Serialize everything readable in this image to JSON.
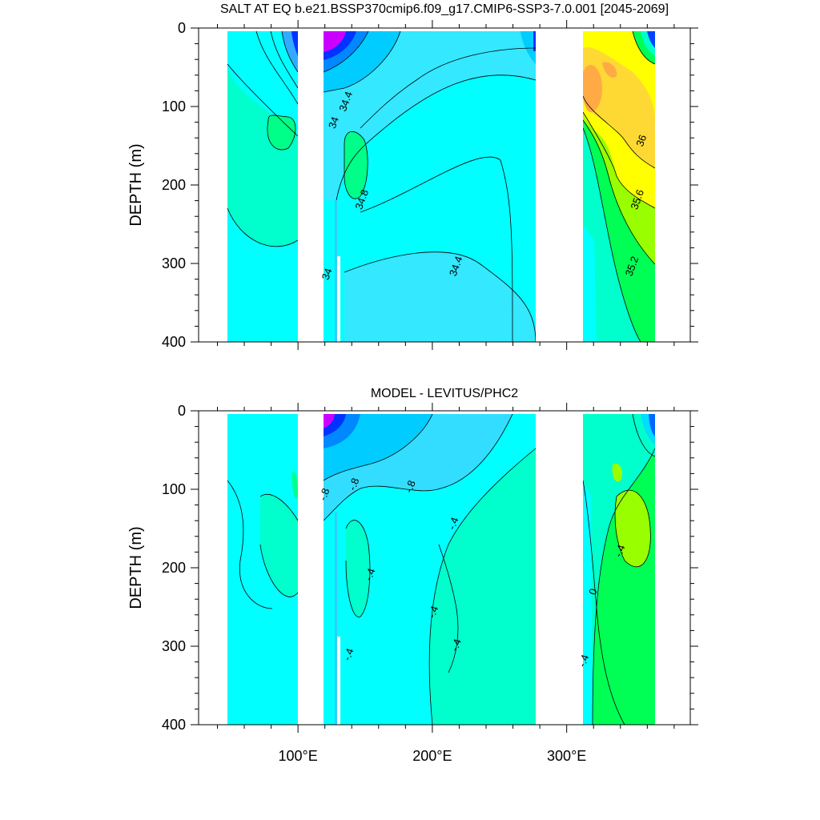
{
  "chart_data": [
    {
      "type": "heatmap",
      "title": "SALT AT EQ b.e21.BSSP370cmip6.f09_g17.CMIP6-SSP3-7.0.001 [2045-2069]",
      "xlabel": "",
      "ylabel": "DEPTH (m)",
      "xlim": [
        26,
        392
      ],
      "ylim": [
        400,
        0
      ],
      "y_ticks": [
        0,
        100,
        200,
        300,
        400
      ],
      "y_tick_labels": [
        "0",
        "100",
        "200",
        "300",
        "400"
      ],
      "x_ticks": [
        100,
        200,
        300
      ],
      "land_gaps_lon": [
        [
          98,
          118
        ],
        [
          279,
          314
        ]
      ],
      "data_extent_lon": [
        45,
        370
      ],
      "contour_labels": [
        {
          "text": "34.4",
          "lon": 138,
          "depth": 95
        },
        {
          "text": "34",
          "lon": 129,
          "depth": 122
        },
        {
          "text": "36",
          "lon": 358,
          "depth": 145
        },
        {
          "text": "34.8",
          "lon": 150,
          "depth": 220
        },
        {
          "text": "35.6",
          "lon": 355,
          "depth": 220
        },
        {
          "text": "34.4",
          "lon": 220,
          "depth": 305
        },
        {
          "text": "35.2",
          "lon": 351,
          "depth": 305
        },
        {
          "text": "34",
          "lon": 124,
          "depth": 315
        }
      ],
      "fill_colors": {
        "background_cyan": "#00ffff",
        "light_cyan": "#33e8ff",
        "aquamarine": "#00ffcc",
        "green": "#00ff55",
        "yellow_green": "#99ff00",
        "yellow": "#ffff00",
        "gold": "#ffd933",
        "orange": "#ffaa44",
        "magenta": "#cc00ff",
        "blue": "#0033ff"
      }
    },
    {
      "type": "heatmap",
      "title": "MODEL - LEVITUS/PHC2",
      "xlabel": "",
      "ylabel": "DEPTH (m)",
      "xlim": [
        26,
        392
      ],
      "ylim": [
        400,
        0
      ],
      "y_ticks": [
        0,
        100,
        200,
        300,
        400
      ],
      "y_tick_labels": [
        "0",
        "100",
        "200",
        "300",
        "400"
      ],
      "x_ticks": [
        100,
        200,
        300
      ],
      "x_tick_labels": [
        "100°E",
        "200°E",
        "300°E"
      ],
      "land_gaps_lon": [
        [
          98,
          118
        ],
        [
          279,
          314
        ]
      ],
      "data_extent_lon": [
        45,
        370
      ],
      "contour_labels": [
        {
          "text": "-.8",
          "lon": 122,
          "depth": 108
        },
        {
          "text": "-.8",
          "lon": 144,
          "depth": 95
        },
        {
          "text": "-.8",
          "lon": 186,
          "depth": 98
        },
        {
          "text": "-.4",
          "lon": 218,
          "depth": 145
        },
        {
          "text": "-.4",
          "lon": 342,
          "depth": 180
        },
        {
          "text": "-.4",
          "lon": 156,
          "depth": 210
        },
        {
          "text": "0",
          "lon": 322,
          "depth": 232
        },
        {
          "text": "-.4",
          "lon": 203,
          "depth": 258
        },
        {
          "text": "-.4",
          "lon": 220,
          "depth": 300
        },
        {
          "text": "-.4",
          "lon": 140,
          "depth": 312
        },
        {
          "text": "-.4",
          "lon": 315,
          "depth": 320
        }
      ],
      "fill_colors": {
        "background_cyan": "#00ffff",
        "aquamarine": "#00ffcc",
        "light_cyan": "#33e8ff",
        "green": "#00ff55",
        "yellow_green": "#99ff00",
        "blue": "#0033ff",
        "magenta": "#cc00ff"
      }
    }
  ]
}
